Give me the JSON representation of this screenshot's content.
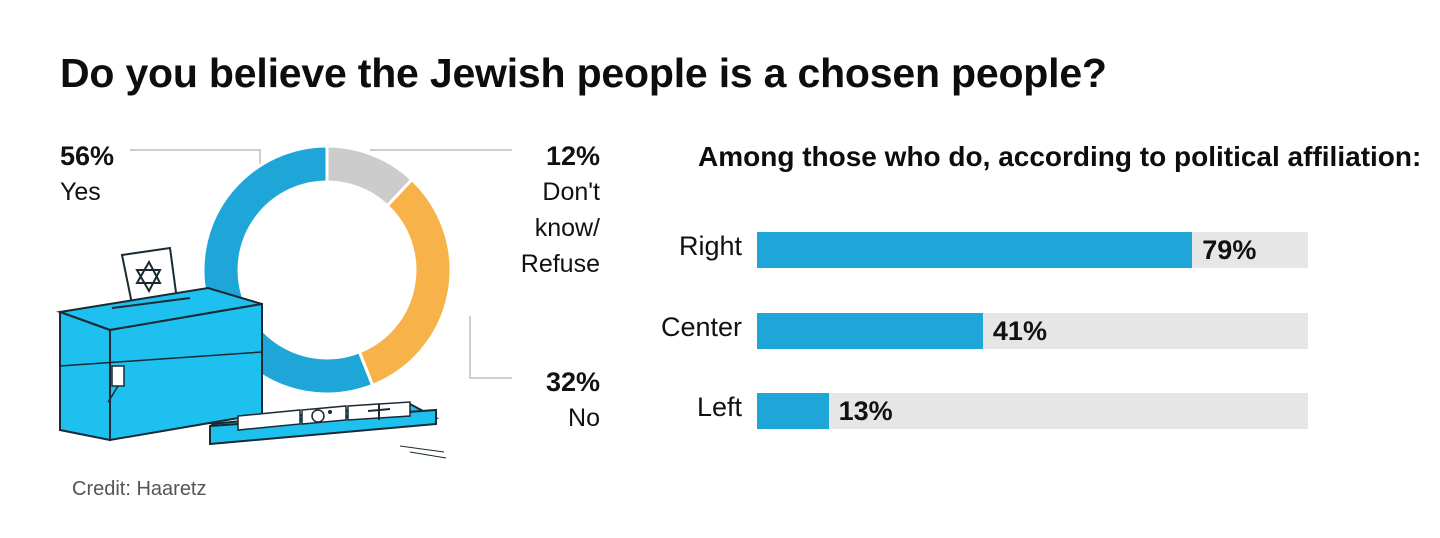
{
  "title": "Do you believe the Jewish people is a chosen people?",
  "credit": "Credit: Haaretz",
  "colors": {
    "yes": "#1fa6d9",
    "dont_know": "#cccccc",
    "no": "#f7b24a",
    "bar_fill": "#1fa6d9",
    "bar_track": "#e6e6e6",
    "ballot_box": "#1ec0ef"
  },
  "chart_data": [
    {
      "type": "pie",
      "title": "Do you believe the Jewish people is a chosen people?",
      "slices": [
        {
          "key": "yes",
          "label": "Yes",
          "value": 56,
          "value_label": "56%"
        },
        {
          "key": "dont_know",
          "label_lines": [
            "Don't",
            "know/",
            "Refuse"
          ],
          "value": 12,
          "value_label": "12%"
        },
        {
          "key": "no",
          "label": "No",
          "value": 32,
          "value_label": "32%"
        }
      ]
    },
    {
      "type": "bar",
      "orientation": "horizontal",
      "title": "Among those who do, according to political affiliation:",
      "categories": [
        "Right",
        "Center",
        "Left"
      ],
      "values": [
        79,
        41,
        13
      ],
      "value_labels": [
        "79%",
        "41%",
        "13%"
      ],
      "xlim": [
        0,
        100
      ]
    }
  ]
}
